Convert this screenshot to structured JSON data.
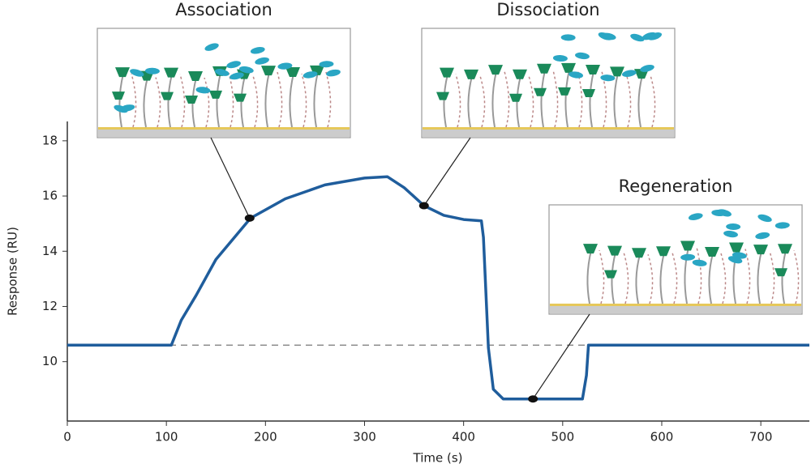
{
  "chart_data": {
    "type": "line",
    "xlabel": "Time (s)",
    "ylabel": "Response (RU)",
    "x": [
      0,
      100,
      105,
      115,
      130,
      150,
      185,
      220,
      260,
      300,
      323,
      340,
      360,
      380,
      400,
      418,
      420,
      425,
      430,
      440,
      520,
      524,
      526,
      749
    ],
    "y": [
      10.6,
      10.6,
      10.6,
      11.5,
      12.4,
      13.7,
      15.2,
      15.9,
      16.4,
      16.65,
      16.7,
      16.3,
      15.65,
      15.3,
      15.15,
      15.1,
      14.5,
      10.5,
      9.0,
      8.65,
      8.65,
      9.5,
      10.6,
      10.6
    ],
    "color": "#1f5d9c",
    "baseline": 10.6,
    "xlim": [
      0,
      749
    ],
    "ylim": [
      7.85,
      18.7
    ],
    "xticks": [
      0,
      100,
      200,
      300,
      400,
      500,
      600,
      700
    ],
    "yticks": [
      10,
      12,
      14,
      16,
      18
    ],
    "grid": false,
    "annotations": [
      {
        "text": "Association",
        "x": 184,
        "y": 15.2
      },
      {
        "text": "Dissociation",
        "x": 360,
        "y": 15.65
      },
      {
        "text": "Regeneration",
        "x": 470,
        "y": 8.65
      }
    ]
  }
}
